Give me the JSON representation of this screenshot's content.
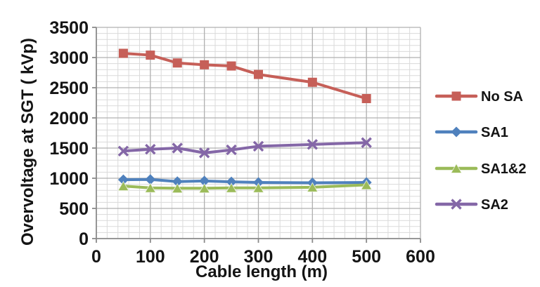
{
  "chart_data": {
    "type": "line",
    "title": "",
    "xlabel": "Cable length (m)",
    "ylabel": "Overvoltage at SGT ( kVp)",
    "x": [
      50,
      100,
      150,
      200,
      250,
      300,
      400,
      500
    ],
    "series": [
      {
        "name": "No SA",
        "color": "#c65f58",
        "marker": "square",
        "values": [
          3070,
          3040,
          2910,
          2880,
          2860,
          2720,
          2590,
          2320
        ]
      },
      {
        "name": "SA1",
        "color": "#4f81bd",
        "marker": "diamond",
        "values": [
          975,
          980,
          945,
          955,
          940,
          930,
          925,
          930
        ]
      },
      {
        "name": "SA1&2",
        "color": "#9bbb59",
        "marker": "triangle",
        "values": [
          870,
          840,
          835,
          835,
          840,
          840,
          850,
          890
        ]
      },
      {
        "name": "SA2",
        "color": "#8467a7",
        "marker": "x",
        "values": [
          1450,
          1480,
          1500,
          1420,
          1470,
          1530,
          1560,
          1590
        ]
      }
    ],
    "xlim": [
      0,
      600
    ],
    "ylim": [
      0,
      3500
    ],
    "x_ticks": [
      0,
      100,
      200,
      300,
      400,
      500,
      600
    ],
    "y_ticks": [
      0,
      500,
      1000,
      1500,
      2000,
      2500,
      3000,
      3500
    ],
    "x_major": 100,
    "x_minor": 20,
    "y_major": 500,
    "y_minor": 100,
    "grid": "major+minor",
    "legend_position": "right",
    "colors": {
      "axis": "#8a8a8a",
      "grid_major": "#b0b0b0",
      "grid_minor": "#dadada",
      "text": "#141414"
    }
  }
}
